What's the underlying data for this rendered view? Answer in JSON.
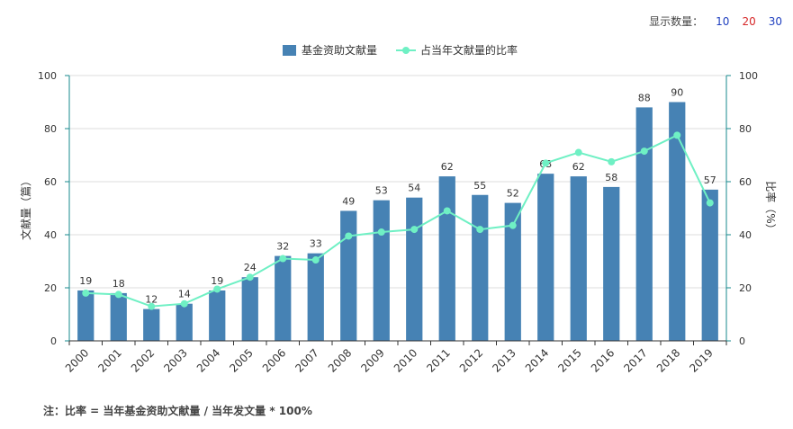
{
  "controls": {
    "label": "显示数量：",
    "options": [
      {
        "label": "10",
        "color": "#1f3fbf"
      },
      {
        "label": "20",
        "color": "#d62728"
      },
      {
        "label": "30",
        "color": "#1f3fbf"
      }
    ]
  },
  "footnote": "注：比率 = 当年基金资助文献量 / 当年发文量 * 100%",
  "chart_data": {
    "type": "bar",
    "categories": [
      "2000",
      "2001",
      "2002",
      "2003",
      "2004",
      "2005",
      "2006",
      "2007",
      "2008",
      "2009",
      "2010",
      "2011",
      "2012",
      "2013",
      "2014",
      "2015",
      "2016",
      "2017",
      "2018",
      "2019"
    ],
    "series": [
      {
        "name": "基金资助文献量",
        "type": "bar",
        "color": "#4682b4",
        "values": [
          19,
          18,
          12,
          14,
          19,
          24,
          32,
          33,
          49,
          53,
          54,
          62,
          55,
          52,
          63,
          62,
          58,
          88,
          90,
          57
        ]
      },
      {
        "name": "占当年文献量的比率",
        "type": "line",
        "color": "#6ff0c4",
        "values": [
          18,
          17.5,
          13,
          14,
          19.5,
          24,
          31,
          30.5,
          39.5,
          41,
          42,
          49,
          42,
          43.5,
          67,
          71,
          67.5,
          71.5,
          77.5,
          52
        ]
      }
    ],
    "ylabel": "文献量（篇）",
    "y2label": "比率（%）",
    "ylim": [
      0,
      100
    ],
    "y2lim": [
      0,
      100
    ],
    "yticks": [
      0,
      20,
      40,
      60,
      80,
      100
    ],
    "legend": "top-center",
    "grid": true
  }
}
